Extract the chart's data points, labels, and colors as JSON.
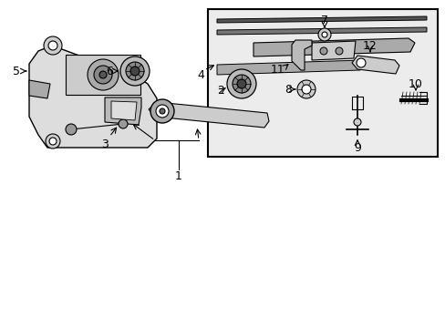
{
  "background_color": "#ffffff",
  "line_color": "#000000",
  "box_fill": "#e8e8e8",
  "label_fontsize": 9,
  "part_numbers": [
    "1",
    "2",
    "3",
    "4",
    "5",
    "6",
    "7",
    "8",
    "9",
    "10",
    "11",
    "12"
  ]
}
